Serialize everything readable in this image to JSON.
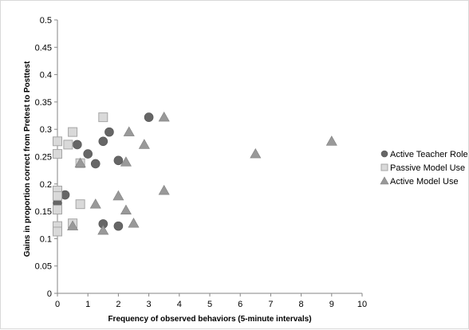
{
  "chart_data": {
    "type": "scatter",
    "title": "",
    "xlabel": "Frequency of observed behaviors (5-minute intervals)",
    "ylabel": "Gains in proportion correct from Pretest to Posttest",
    "xlim": [
      0,
      10
    ],
    "ylim": [
      0,
      0.5
    ],
    "xticks": [
      "0",
      "1",
      "2",
      "3",
      "4",
      "5",
      "6",
      "7",
      "8",
      "9",
      "10"
    ],
    "yticks": [
      "0",
      "0.05",
      "0.1",
      "0.15",
      "0.2",
      "0.25",
      "0.3",
      "0.35",
      "0.4",
      "0.45",
      "0.5"
    ],
    "grid": "none",
    "legend_position": "right",
    "series": [
      {
        "name": "Active Teacher Role",
        "marker": "circle",
        "color": "#666666",
        "points": [
          {
            "x": 0,
            "y": 0.165
          },
          {
            "x": 0.25,
            "y": 0.18
          },
          {
            "x": 0.65,
            "y": 0.272
          },
          {
            "x": 1.0,
            "y": 0.255
          },
          {
            "x": 1.25,
            "y": 0.237
          },
          {
            "x": 1.5,
            "y": 0.278
          },
          {
            "x": 1.7,
            "y": 0.295
          },
          {
            "x": 1.5,
            "y": 0.127
          },
          {
            "x": 2.0,
            "y": 0.243
          },
          {
            "x": 2.0,
            "y": 0.123
          },
          {
            "x": 3.0,
            "y": 0.322
          }
        ]
      },
      {
        "name": "Passive Model Use",
        "marker": "square",
        "color": "#d9d9d9",
        "points": [
          {
            "x": 0,
            "y": 0.278
          },
          {
            "x": 0,
            "y": 0.255
          },
          {
            "x": 0,
            "y": 0.188
          },
          {
            "x": 0,
            "y": 0.178
          },
          {
            "x": 0,
            "y": 0.153
          },
          {
            "x": 0,
            "y": 0.123
          },
          {
            "x": 0,
            "y": 0.113
          },
          {
            "x": 0.35,
            "y": 0.272
          },
          {
            "x": 0.5,
            "y": 0.295
          },
          {
            "x": 0.5,
            "y": 0.128
          },
          {
            "x": 0.75,
            "y": 0.163
          },
          {
            "x": 0.75,
            "y": 0.238
          },
          {
            "x": 1.5,
            "y": 0.322
          }
        ]
      },
      {
        "name": "Active Model Use",
        "marker": "triangle",
        "color": "#999999",
        "points": [
          {
            "x": 0.5,
            "y": 0.123
          },
          {
            "x": 0.75,
            "y": 0.238
          },
          {
            "x": 1.25,
            "y": 0.163
          },
          {
            "x": 1.5,
            "y": 0.115
          },
          {
            "x": 2.0,
            "y": 0.178
          },
          {
            "x": 2.25,
            "y": 0.24
          },
          {
            "x": 2.25,
            "y": 0.152
          },
          {
            "x": 2.35,
            "y": 0.295
          },
          {
            "x": 2.5,
            "y": 0.128
          },
          {
            "x": 2.85,
            "y": 0.272
          },
          {
            "x": 3.5,
            "y": 0.322
          },
          {
            "x": 3.5,
            "y": 0.188
          },
          {
            "x": 6.5,
            "y": 0.255
          },
          {
            "x": 9.0,
            "y": 0.278
          }
        ]
      }
    ]
  }
}
